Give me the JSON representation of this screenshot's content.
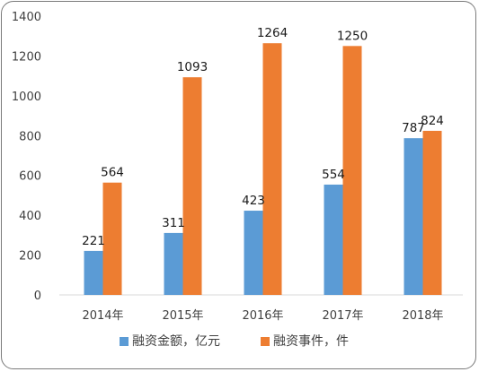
{
  "chart_data": {
    "type": "bar",
    "categories": [
      "2014年",
      "2015年",
      "2016年",
      "2017年",
      "2018年"
    ],
    "series": [
      {
        "name": "融资金额，亿元",
        "values": [
          221,
          311,
          423,
          554,
          787
        ],
        "color": "#5b9bd5"
      },
      {
        "name": "融资事件，件",
        "values": [
          564,
          1093,
          1264,
          1250,
          824
        ],
        "color": "#ed7d31"
      }
    ],
    "yticks": [
      0,
      200,
      400,
      600,
      800,
      1000,
      1200,
      1400
    ],
    "ylim": [
      0,
      1400
    ],
    "grid": false,
    "legend_position": "bottom",
    "title": "",
    "xlabel": "",
    "ylabel": ""
  }
}
